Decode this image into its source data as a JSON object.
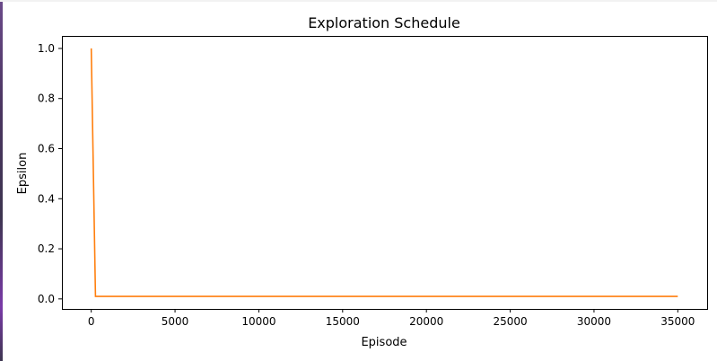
{
  "chart_data": {
    "type": "line",
    "title": "Exploration Schedule",
    "xlabel": "Episode",
    "ylabel": "Epsilon",
    "xlim": [
      -1750,
      36750
    ],
    "ylim": [
      -0.04,
      1.05
    ],
    "xticks": [
      0,
      5000,
      10000,
      15000,
      20000,
      25000,
      30000,
      35000
    ],
    "yticks": [
      0.0,
      0.2,
      0.4,
      0.6,
      0.8,
      1.0
    ],
    "ytick_labels": [
      "0.0",
      "0.2",
      "0.4",
      "0.6",
      "0.8",
      "1.0"
    ],
    "grid": false,
    "series": [
      {
        "color": "#ff7f0e",
        "x": [
          0,
          250,
          35000
        ],
        "y": [
          1.0,
          0.01,
          0.01
        ]
      }
    ]
  }
}
